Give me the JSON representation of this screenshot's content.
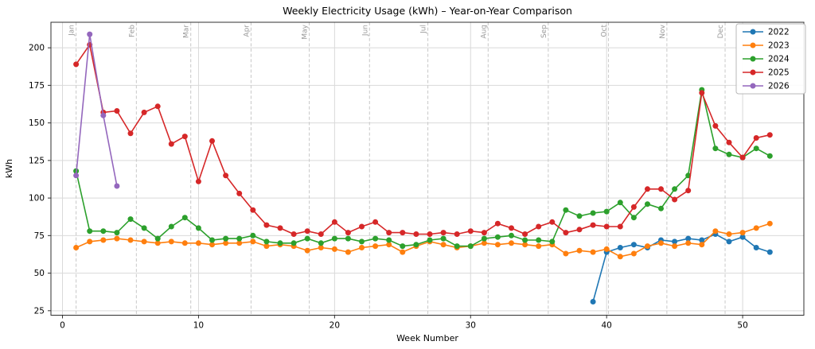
{
  "chart_data": {
    "type": "line",
    "title": "Weekly Electricity Usage (kWh) – Year-on-Year Comparison",
    "xlabel": "Week Number",
    "ylabel": "kWh",
    "xlim": [
      -0.85,
      54.5
    ],
    "ylim": [
      22,
      217
    ],
    "xticks": [
      0,
      10,
      20,
      30,
      40,
      50
    ],
    "yticks": [
      25,
      50,
      75,
      100,
      125,
      150,
      175,
      200
    ],
    "grid": true,
    "legend_position": "upper right",
    "month_gridlines": [
      {
        "label": "Jan",
        "week": 1.0
      },
      {
        "label": "Feb",
        "week": 5.43
      },
      {
        "label": "Mar",
        "week": 9.43
      },
      {
        "label": "Apr",
        "week": 13.86
      },
      {
        "label": "May",
        "week": 18.14
      },
      {
        "label": "Jun",
        "week": 22.57
      },
      {
        "label": "Jul",
        "week": 26.86
      },
      {
        "label": "Aug",
        "week": 31.29
      },
      {
        "label": "Sep",
        "week": 35.71
      },
      {
        "label": "Oct",
        "week": 40.14
      },
      {
        "label": "Nov",
        "week": 44.43
      },
      {
        "label": "Dec",
        "week": 48.71
      }
    ],
    "series": [
      {
        "name": "2022",
        "color": "#1f77b4",
        "start_week": 39,
        "values": [
          31,
          64,
          67,
          69,
          67,
          72,
          71,
          73,
          72,
          76,
          71,
          74,
          67,
          64
        ]
      },
      {
        "name": "2023",
        "color": "#ff7f0e",
        "start_week": 1,
        "values": [
          67,
          71,
          72,
          73,
          72,
          71,
          70,
          71,
          70,
          70,
          69,
          70,
          70,
          71,
          68,
          69,
          68,
          65,
          67,
          66,
          64,
          67,
          68,
          69,
          64,
          68,
          71,
          69,
          67,
          68,
          70,
          69,
          70,
          69,
          68,
          69,
          63,
          65,
          64,
          66,
          61,
          63,
          68,
          70,
          68,
          70,
          69,
          78,
          76,
          77,
          80,
          83
        ]
      },
      {
        "name": "2024",
        "color": "#2ca02c",
        "start_week": 1,
        "values": [
          118,
          78,
          78,
          77,
          86,
          80,
          73,
          81,
          87,
          80,
          72,
          73,
          73,
          75,
          71,
          70,
          70,
          73,
          70,
          73,
          73,
          71,
          73,
          72,
          68,
          69,
          72,
          73,
          68,
          68,
          73,
          74,
          75,
          72,
          72,
          71,
          92,
          88,
          90,
          91,
          97,
          87,
          96,
          93,
          106,
          115,
          172,
          133,
          129,
          127,
          133,
          128
        ]
      },
      {
        "name": "2025",
        "color": "#d62728",
        "start_week": 1,
        "values": [
          189,
          202,
          157,
          158,
          143,
          157,
          161,
          136,
          141,
          111,
          138,
          115,
          103,
          92,
          82,
          80,
          76,
          78,
          76,
          84,
          77,
          81,
          84,
          77,
          77,
          76,
          76,
          77,
          76,
          78,
          77,
          83,
          80,
          76,
          81,
          84,
          77,
          79,
          82,
          81,
          81,
          94,
          106,
          106,
          99,
          105,
          170,
          148,
          137,
          127,
          140,
          142
        ]
      },
      {
        "name": "2026",
        "color": "#9467bd",
        "start_week": 1,
        "values": [
          115,
          209,
          155,
          108
        ]
      }
    ]
  }
}
